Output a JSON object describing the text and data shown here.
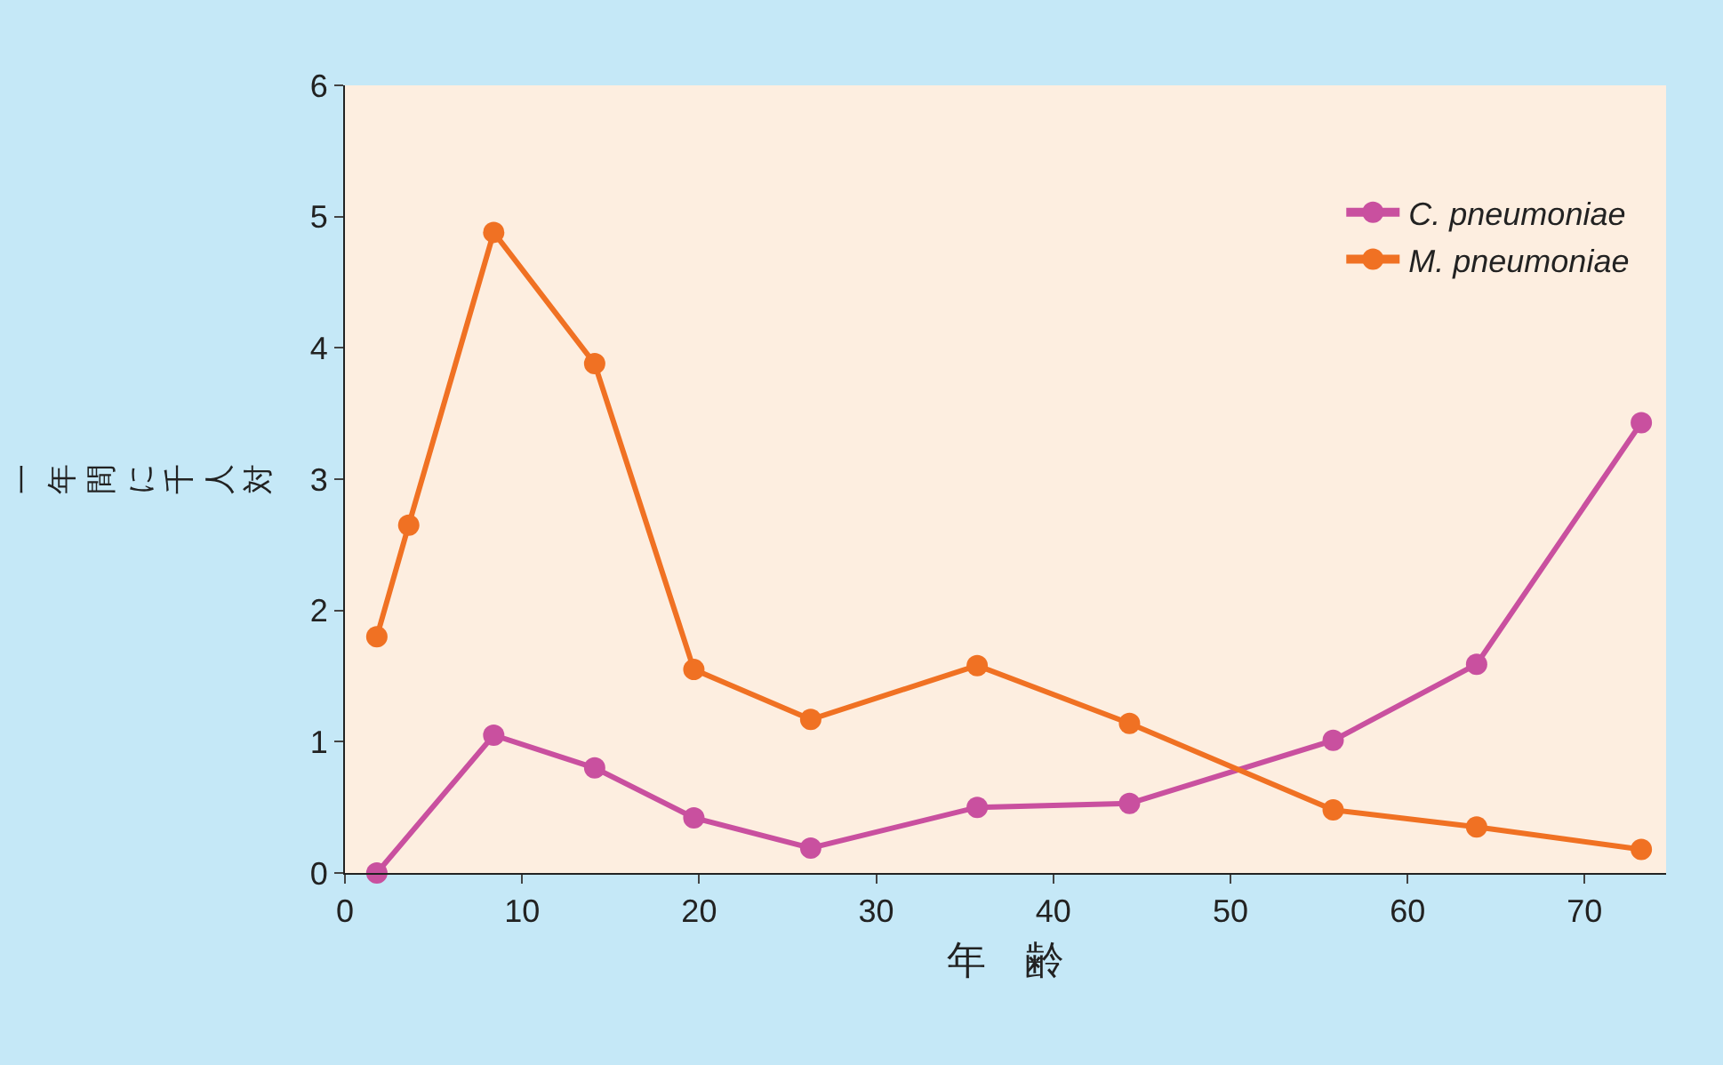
{
  "chart_data": {
    "type": "line",
    "xlabel": "年　齢",
    "ylabel": "一年間に千人対",
    "series": [
      {
        "name": "C. pneumoniae",
        "color": "#c9509f",
        "x": [
          1.8,
          8.4,
          14.1,
          19.7,
          26.3,
          35.7,
          44.3,
          55.8,
          63.9,
          73.2
        ],
        "values": [
          0,
          1.05,
          0.8,
          0.42,
          0.19,
          0.5,
          0.53,
          1.01,
          1.59,
          3.43
        ]
      },
      {
        "name": "M. pneumoniae",
        "color": "#f07123",
        "x": [
          1.8,
          3.6,
          8.4,
          14.1,
          19.7,
          26.3,
          35.7,
          44.3,
          55.8,
          63.9,
          73.2
        ],
        "values": [
          1.8,
          2.65,
          4.88,
          3.88,
          1.55,
          1.17,
          1.58,
          1.14,
          0.48,
          0.35,
          0.18
        ]
      }
    ],
    "xlim": [
      0,
      74.6
    ],
    "xticks": [
      0,
      10,
      20,
      30,
      40,
      50,
      60,
      70
    ],
    "ylim": [
      0,
      6
    ],
    "yticks": [
      0,
      1,
      2,
      3,
      4,
      5,
      6
    ],
    "grid": false,
    "legend": "top right",
    "marker": "circle",
    "line_style": "solid"
  }
}
